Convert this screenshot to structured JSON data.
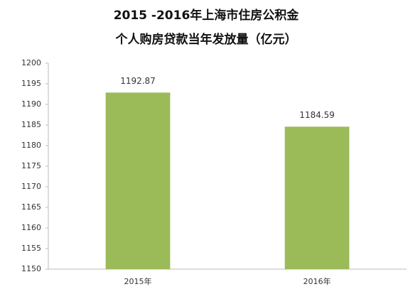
{
  "chart_data": {
    "type": "bar",
    "title": "2015 -2016年上海市住房公积金",
    "subtitle": "个人购房贷款当年发放量（亿元）",
    "categories": [
      "2015年",
      "2016年"
    ],
    "values": [
      1192.87,
      1184.59
    ],
    "color": "#9bbb59",
    "ylim": [
      1150,
      1200
    ],
    "yticks": [
      1150,
      1155,
      1160,
      1165,
      1170,
      1175,
      1180,
      1185,
      1190,
      1195,
      1200
    ],
    "grid": false
  }
}
